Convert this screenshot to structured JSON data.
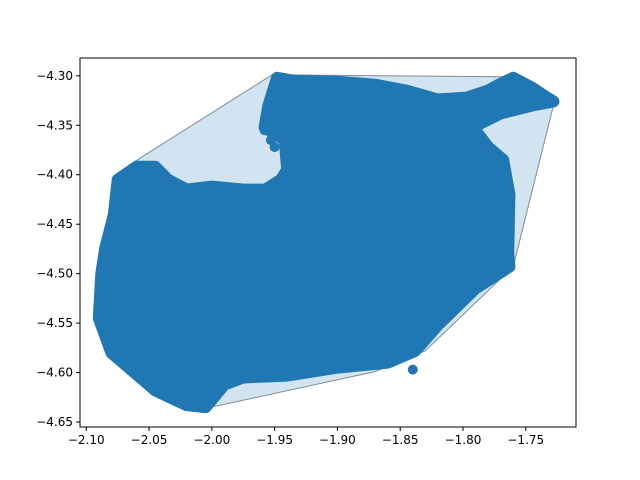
{
  "chart_data": {
    "type": "scatter",
    "title": "",
    "xlabel": "",
    "ylabel": "",
    "xlim": [
      -2.105,
      -1.71
    ],
    "ylim": [
      -4.655,
      -4.282
    ],
    "grid": false,
    "legend": "none",
    "colors": {
      "points": "#1f77b4",
      "hull_fill": "#1f77b4",
      "hull_fill_opacity": 0.2,
      "hull_edge": "#7f8c9a"
    },
    "x_ticks": [
      {
        "value": -2.1,
        "label": "−2.10"
      },
      {
        "value": -2.05,
        "label": "−2.05"
      },
      {
        "value": -2.0,
        "label": "−2.00"
      },
      {
        "value": -1.95,
        "label": "−1.95"
      },
      {
        "value": -1.9,
        "label": "−1.90"
      },
      {
        "value": -1.85,
        "label": "−1.85"
      },
      {
        "value": -1.8,
        "label": "−1.80"
      },
      {
        "value": -1.75,
        "label": "−1.75"
      }
    ],
    "y_ticks": [
      {
        "value": -4.3,
        "label": "−4.30"
      },
      {
        "value": -4.35,
        "label": "−4.35"
      },
      {
        "value": -4.4,
        "label": "−4.40"
      },
      {
        "value": -4.45,
        "label": "−4.45"
      },
      {
        "value": -4.5,
        "label": "−4.50"
      },
      {
        "value": -4.55,
        "label": "−4.55"
      },
      {
        "value": -4.6,
        "label": "−4.60"
      },
      {
        "value": -4.65,
        "label": "−4.65"
      }
    ],
    "hull": [
      [
        -1.952,
        -4.299
      ],
      [
        -1.765,
        -4.301
      ],
      [
        -1.727,
        -4.325
      ],
      [
        -1.76,
        -4.493
      ],
      [
        -1.83,
        -4.578
      ],
      [
        -1.87,
        -4.599
      ],
      [
        -2.008,
        -4.637
      ],
      [
        -2.04,
        -4.623
      ],
      [
        -2.09,
        -4.56
      ],
      [
        -2.086,
        -4.497
      ],
      [
        -2.075,
        -4.455
      ],
      [
        -2.062,
        -4.387
      ],
      [
        -1.952,
        -4.299
      ]
    ],
    "point_cloud_outline": [
      [
        -1.948,
        -4.302
      ],
      [
        -1.935,
        -4.305
      ],
      [
        -1.9,
        -4.306
      ],
      [
        -1.87,
        -4.309
      ],
      [
        -1.845,
        -4.315
      ],
      [
        -1.82,
        -4.324
      ],
      [
        -1.797,
        -4.322
      ],
      [
        -1.78,
        -4.315
      ],
      [
        -1.77,
        -4.308
      ],
      [
        -1.76,
        -4.302
      ],
      [
        -1.745,
        -4.312
      ],
      [
        -1.733,
        -4.322
      ],
      [
        -1.728,
        -4.326
      ],
      [
        -1.745,
        -4.33
      ],
      [
        -1.77,
        -4.338
      ],
      [
        -1.792,
        -4.352
      ],
      [
        -1.78,
        -4.372
      ],
      [
        -1.768,
        -4.385
      ],
      [
        -1.763,
        -4.42
      ],
      [
        -1.764,
        -4.48
      ],
      [
        -1.763,
        -4.493
      ],
      [
        -1.79,
        -4.515
      ],
      [
        -1.82,
        -4.552
      ],
      [
        -1.838,
        -4.578
      ],
      [
        -1.86,
        -4.59
      ],
      [
        -1.9,
        -4.595
      ],
      [
        -1.94,
        -4.603
      ],
      [
        -1.975,
        -4.605
      ],
      [
        -1.99,
        -4.612
      ],
      [
        -2.005,
        -4.635
      ],
      [
        -2.02,
        -4.633
      ],
      [
        -2.045,
        -4.618
      ],
      [
        -2.08,
        -4.58
      ],
      [
        -2.09,
        -4.545
      ],
      [
        -2.088,
        -4.5
      ],
      [
        -2.085,
        -4.475
      ],
      [
        -2.078,
        -4.44
      ],
      [
        -2.075,
        -4.405
      ],
      [
        -2.06,
        -4.392
      ],
      [
        -2.045,
        -4.392
      ],
      [
        -2.035,
        -4.405
      ],
      [
        -2.02,
        -4.415
      ],
      [
        -2.0,
        -4.412
      ],
      [
        -1.975,
        -4.415
      ],
      [
        -1.955,
        -4.415
      ],
      [
        -1.95,
        -4.425
      ],
      [
        -1.955,
        -4.44
      ],
      [
        -1.97,
        -4.425
      ],
      [
        -1.945,
        -4.405
      ],
      [
        -1.94,
        -4.395
      ],
      [
        -1.942,
        -4.365
      ],
      [
        -1.958,
        -4.352
      ],
      [
        -1.955,
        -4.33
      ],
      [
        -1.95,
        -4.31
      ],
      [
        -1.948,
        -4.302
      ]
    ],
    "outlier_points": [
      [
        -1.958,
        -4.355
      ],
      [
        -1.953,
        -4.365
      ],
      [
        -1.95,
        -4.372
      ],
      [
        -1.952,
        -4.34
      ],
      [
        -1.76,
        -4.302
      ],
      [
        -1.728,
        -4.325
      ],
      [
        -1.836,
        -4.508
      ],
      [
        -1.842,
        -4.517
      ],
      [
        -1.84,
        -4.597
      ],
      [
        -1.97,
        -4.423
      ]
    ]
  }
}
